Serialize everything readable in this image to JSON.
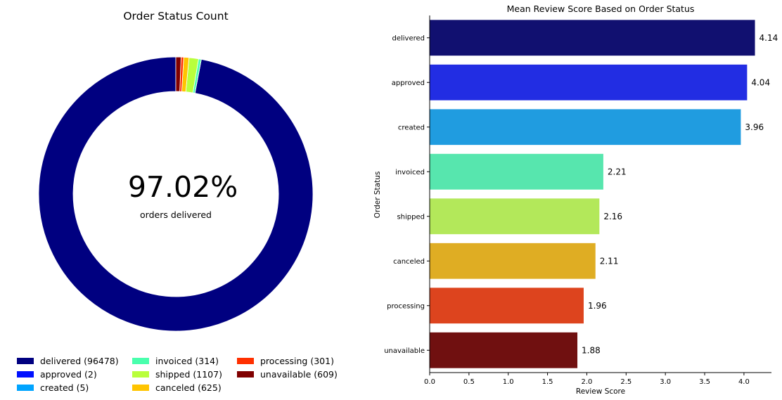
{
  "chart_data": [
    {
      "type": "pie",
      "title": "Order Status Count",
      "center_value": "97.02%",
      "center_label": "orders delivered",
      "slices": [
        {
          "label": "delivered",
          "value": 96478,
          "color": "#000080",
          "legend": "delivered (96478)"
        },
        {
          "label": "approved",
          "value": 2,
          "color": "#0010ff",
          "legend": "approved (2)"
        },
        {
          "label": "created",
          "value": 5,
          "color": "#00a4ff",
          "legend": "created (5)"
        },
        {
          "label": "invoiced",
          "value": 314,
          "color": "#49ffad",
          "legend": "invoiced (314)"
        },
        {
          "label": "shipped",
          "value": 1107,
          "color": "#b9ff3c",
          "legend": "shipped (1107)"
        },
        {
          "label": "canceled",
          "value": 625,
          "color": "#ffc400",
          "legend": "canceled (625)"
        },
        {
          "label": "processing",
          "value": 301,
          "color": "#ff3000",
          "legend": "processing (301)"
        },
        {
          "label": "unavailable",
          "value": 609,
          "color": "#800000",
          "legend": "unavailable (609)"
        }
      ]
    },
    {
      "type": "bar",
      "orientation": "horizontal",
      "title": "Mean Review Score Based on Order Status",
      "xlabel": "Review Score",
      "ylabel": "Order Status",
      "xlim": [
        0,
        4.35
      ],
      "xticks": [
        "0.0",
        "0.5",
        "1.0",
        "1.5",
        "2.0",
        "2.5",
        "3.0",
        "3.5",
        "4.0"
      ],
      "categories": [
        "delivered",
        "approved",
        "created",
        "invoiced",
        "shipped",
        "canceled",
        "processing",
        "unavailable"
      ],
      "values": [
        4.14,
        4.04,
        3.96,
        2.21,
        2.16,
        2.11,
        1.96,
        1.88
      ],
      "value_labels": [
        "4.14",
        "4.04",
        "3.96",
        "2.21",
        "2.16",
        "2.11",
        "1.96",
        "1.88"
      ],
      "colors": [
        "#111070",
        "#222de3",
        "#209ce0",
        "#57e6ae",
        "#b3e85a",
        "#dfad23",
        "#dd441e",
        "#701010"
      ]
    }
  ]
}
